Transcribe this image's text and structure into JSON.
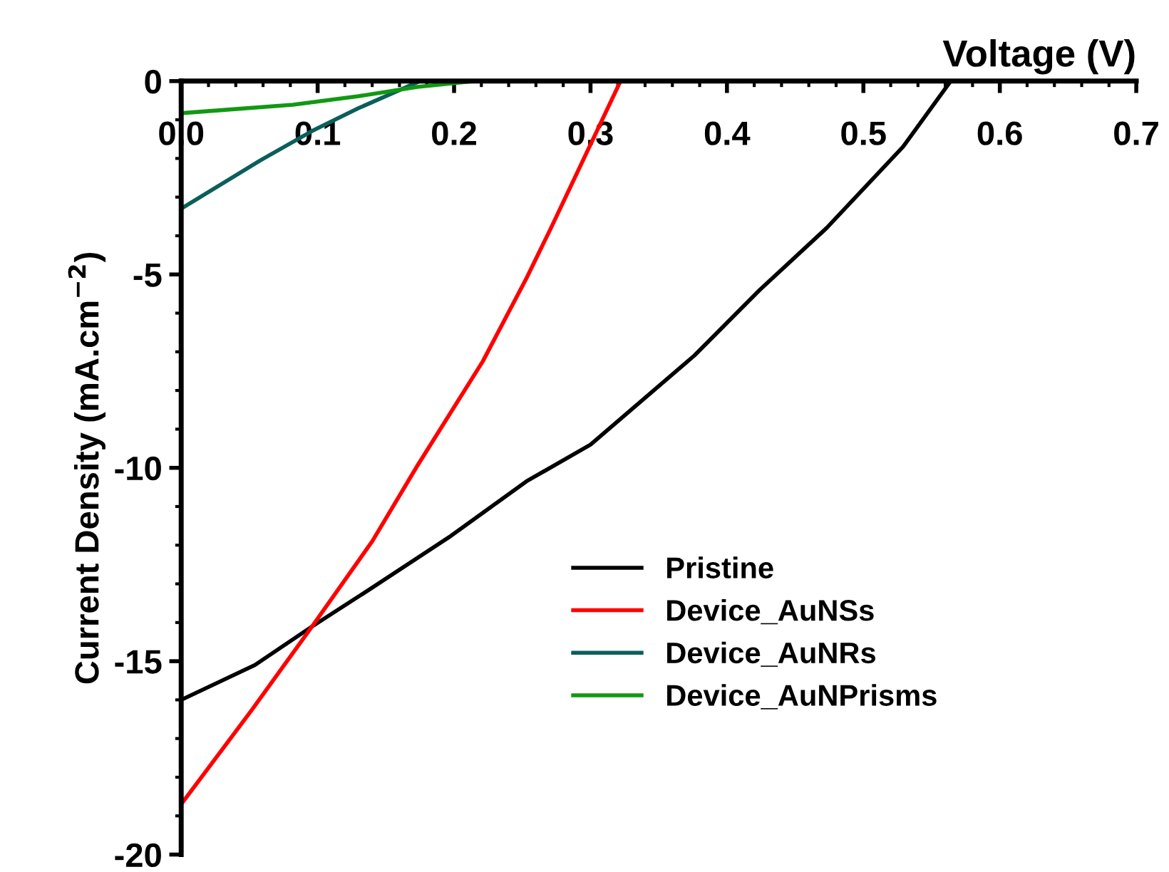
{
  "chart_data": {
    "type": "line",
    "xlabel": "Voltage (V)",
    "ylabel": "Current Density (mA.cm$^{−2}$)",
    "xlim": [
      0,
      0.7
    ],
    "ylim": [
      -20,
      0
    ],
    "xticks": [
      {
        "value": 0,
        "label": "0.0"
      },
      0.1,
      0.2,
      0.3,
      0.4,
      0.5,
      0.6,
      0.7
    ],
    "yticks": [
      -20,
      -15,
      -10,
      -5,
      0
    ],
    "grid": false,
    "legend": "bottom right",
    "marker": "none",
    "line_style": "solid",
    "series": [
      {
        "name": "Pristine",
        "color": "#000000",
        "x": [
          0,
          0.054,
          0.096,
          0.14,
          0.196,
          0.253,
          0.3,
          0.376,
          0.424,
          0.473,
          0.529,
          0.564
        ],
        "values": [
          -16.0,
          -15.1,
          -14.1,
          -13.1,
          -11.8,
          -10.35,
          -9.4,
          -7.1,
          -5.4,
          -3.8,
          -1.7,
          0
        ]
      },
      {
        "name": "Device_AuNSs",
        "color": "#ff0000",
        "x": [
          0,
          0.052,
          0.096,
          0.14,
          0.173,
          0.221,
          0.253,
          0.271,
          0.322
        ],
        "values": [
          -18.7,
          -16.25,
          -14.1,
          -11.9,
          -9.95,
          -7.25,
          -5.1,
          -3.8,
          0
        ]
      },
      {
        "name": "Device_AuNRs",
        "color": "#0b5f5a",
        "x": [
          0,
          0.058,
          0.096,
          0.13,
          0.175
        ],
        "values": [
          -3.3,
          -2.05,
          -1.29,
          -0.7,
          0
        ]
      },
      {
        "name": "Device_AuNPrisms",
        "color": "#119911",
        "x": [
          0,
          0.082,
          0.13,
          0.173,
          0.215
        ],
        "values": [
          -0.83,
          -0.61,
          -0.39,
          -0.15,
          0
        ]
      }
    ]
  }
}
